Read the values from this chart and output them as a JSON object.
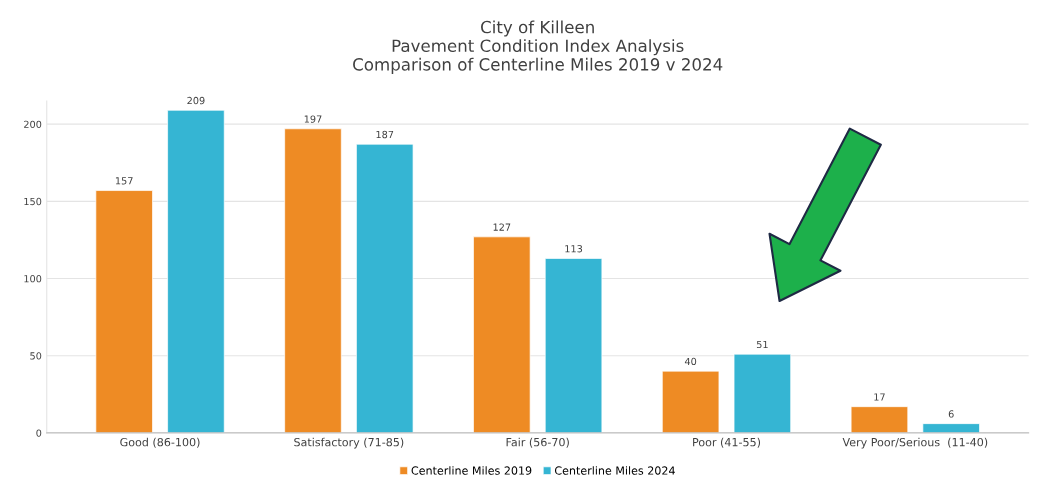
{
  "chart_data": {
    "type": "bar",
    "title": "City of Killeen\nPavement Condition Index Analysis\nComparison of Centerline Miles 2019 v 2024",
    "categories": [
      "Good (86-100)",
      "Satisfactory (71-85)",
      "Fair (56-70)",
      "Poor (41-55)",
      "Very Poor/Serious  (11-40)"
    ],
    "series": [
      {
        "name": "Centerline Miles 2019",
        "color": "#ee8b24",
        "values": [
          157,
          197,
          127,
          40,
          17
        ]
      },
      {
        "name": "Centerline Miles 2024",
        "color": "#35b5d3",
        "values": [
          209,
          187,
          113,
          51,
          6
        ]
      }
    ],
    "ylim": [
      0,
      215
    ],
    "yticks": [
      0,
      50,
      100,
      150,
      200
    ],
    "grid": "y",
    "legend": "bottom",
    "data_labels": true
  }
}
